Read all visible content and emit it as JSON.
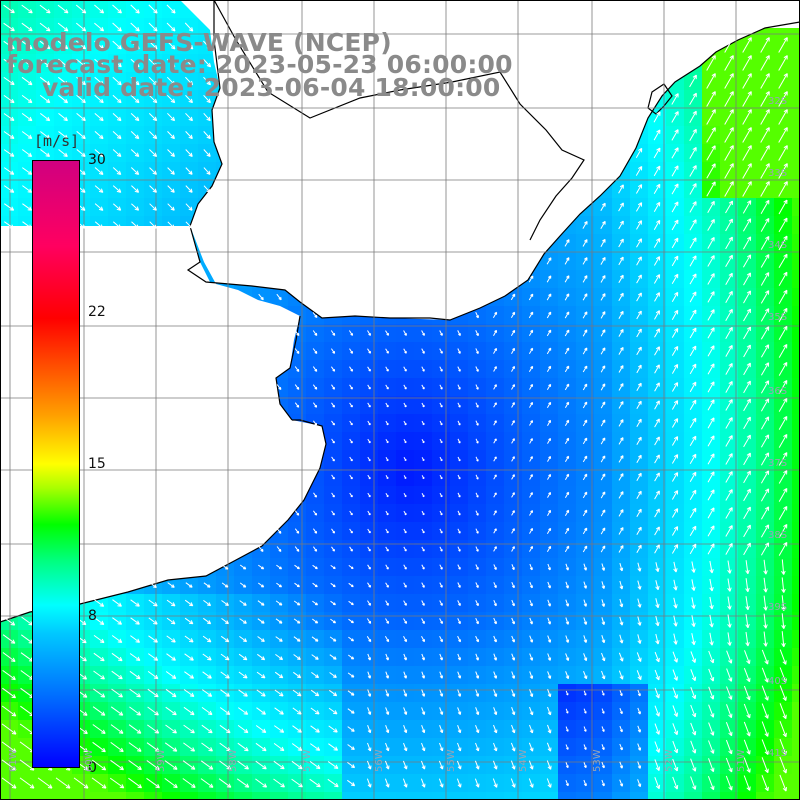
{
  "header": {
    "model": "modelo GEFS-WAVE (NCEP)",
    "forecast": "forecast date: 2023-05-23 06:00:00",
    "valid": "valid date: 2023-06-04 18:00:00"
  },
  "colorbar": {
    "unit": "[m/s]",
    "ticks": [
      {
        "label": "30",
        "value": 30
      },
      {
        "label": "22",
        "value": 22
      },
      {
        "label": "15",
        "value": 15
      },
      {
        "label": "8",
        "value": 8
      },
      {
        "label": "0",
        "value": 0
      }
    ]
  },
  "lat_labels": [
    "32S",
    "33S",
    "34S",
    "35S",
    "36S",
    "37S",
    "38S",
    "39S",
    "40S",
    "41S"
  ],
  "lon_labels": [
    "61W",
    "60W",
    "59W",
    "58W",
    "57W",
    "56W",
    "55W",
    "54W",
    "53W",
    "52W",
    "51W"
  ],
  "colors": {
    "land": "#ffffff",
    "coast": "#000000",
    "grid": "#7a7a7a",
    "arrow": "#ffffff"
  }
}
